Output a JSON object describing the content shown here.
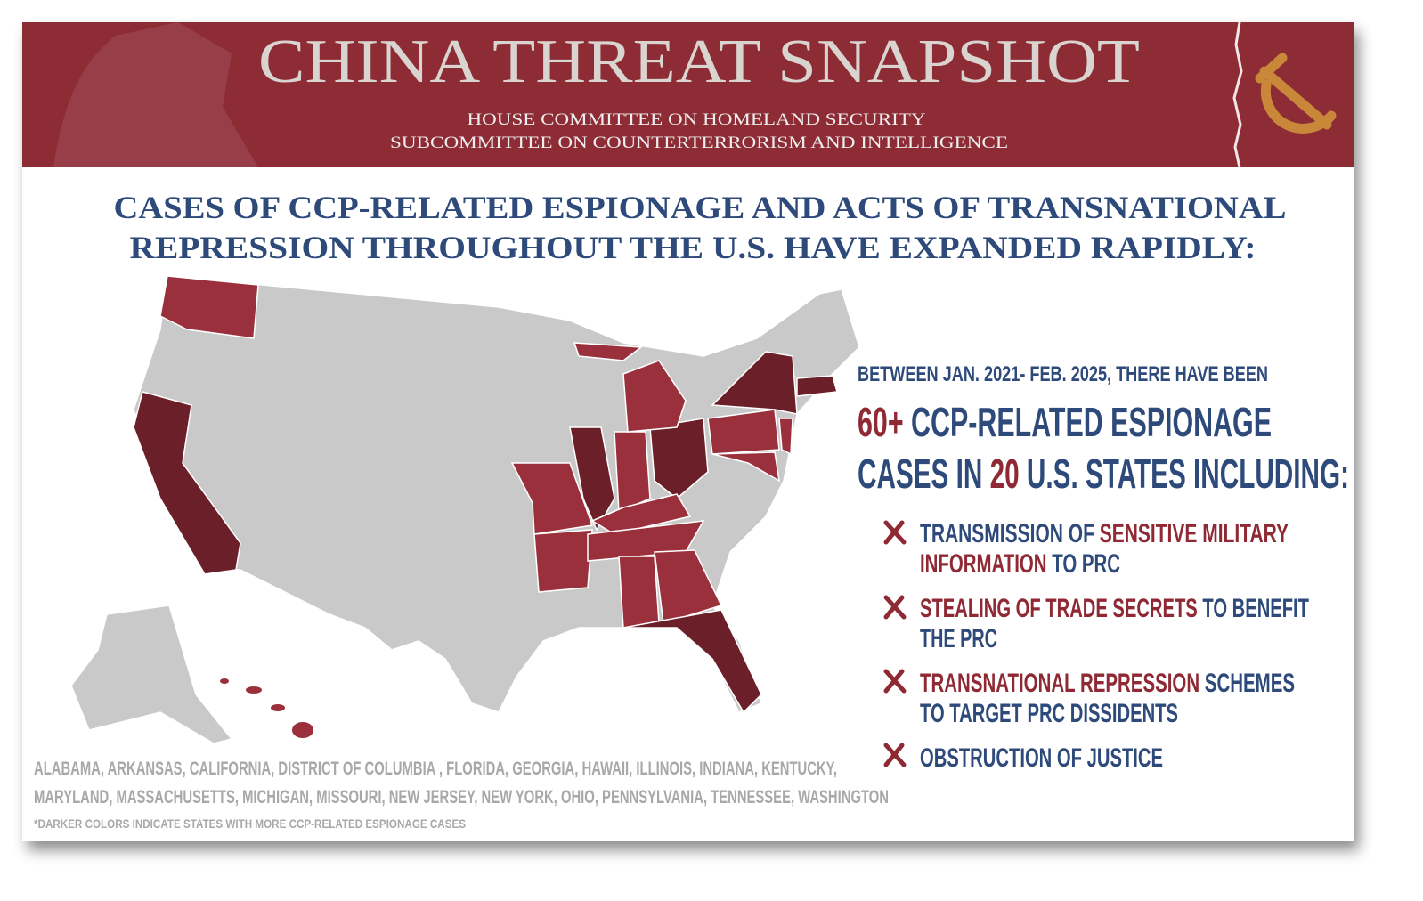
{
  "header": {
    "title": "CHINA THREAT SNAPSHOT",
    "subtitle": [
      "HOUSE COMMITTEE ON HOMELAND SECURITY",
      "SUBCOMMITTEE ON COUNTERTERRORISM AND INTELLIGENCE"
    ]
  },
  "headline": [
    "CASES OF CCP-RELATED ESPIONAGE AND ACTS OF TRANSNATIONAL",
    "REPRESSION THROUGHOUT THE U.S. HAVE EXPANDED RAPIDLY:"
  ],
  "colors": {
    "accent": "#8f2a35",
    "plain": "#2e4a7a"
  },
  "summary": {
    "intro": "BETWEEN JAN. 2021- FEB. 2025, THERE HAVE BEEN",
    "lines": [
      [
        {
          "text": "60+",
          "style": "accent"
        },
        {
          "text": " CCP-RELATED ESPIONAGE",
          "style": "plain"
        }
      ],
      [
        {
          "text": "CASES IN ",
          "style": "plain"
        },
        {
          "text": "20",
          "style": "accent"
        },
        {
          "text": " U.S. STATES INCLUDING:",
          "style": "plain"
        }
      ]
    ]
  },
  "bullets": [
    [
      [
        {
          "text": "TRANSMISSION OF ",
          "style": "plain"
        },
        {
          "text": "SENSITIVE MILITARY",
          "style": "accent"
        }
      ],
      [
        {
          "text": "INFORMATION",
          "style": "accent"
        },
        {
          "text": " TO PRC",
          "style": "plain"
        }
      ]
    ],
    [
      [
        {
          "text": "STEALING OF TRADE SECRETS",
          "style": "accent"
        },
        {
          "text": " TO BENEFIT",
          "style": "plain"
        }
      ],
      [
        {
          "text": "THE PRC",
          "style": "plain"
        }
      ]
    ],
    [
      [
        {
          "text": "TRANSNATIONAL REPRESSION",
          "style": "accent"
        },
        {
          "text": " SCHEMES",
          "style": "plain"
        }
      ],
      [
        {
          "text": "TO TARGET PRC DISSIDENTS",
          "style": "plain"
        }
      ]
    ],
    [
      [
        {
          "text": "OBSTRUCTION OF JUSTICE",
          "style": "plain"
        }
      ]
    ]
  ],
  "states_list": [
    "ALABAMA, ARKANSAS, CALIFORNIA, DISTRICT OF COLUMBIA , FLORIDA, GEORGIA, HAWAII, ILLINOIS, INDIANA, KENTUCKY,",
    "MARYLAND, MASSACHUSETTS, MICHIGAN, MISSOURI, NEW JERSEY, NEW YORK, OHIO, PENNSYLVANIA, TENNESSEE, WASHINGTON"
  ],
  "footnote": "*DARKER COLORS INDICATE STATES WITH MORE CCP-RELATED ESPIONAGE CASES"
}
